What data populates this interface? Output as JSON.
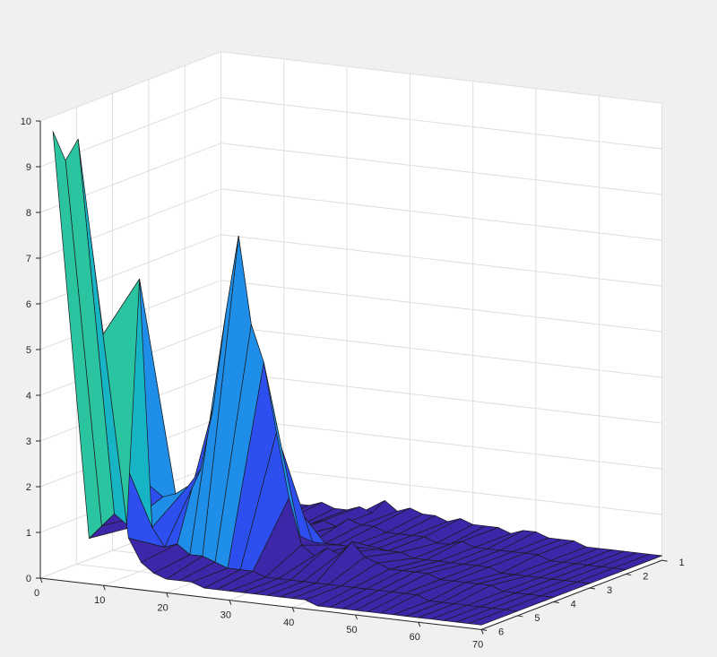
{
  "chart_data": {
    "type": "surface",
    "title": "",
    "xlabel": "",
    "ylabel": "",
    "zlabel": "",
    "xlim": [
      0,
      70
    ],
    "ylim": [
      1,
      6
    ],
    "zlim": [
      0,
      10
    ],
    "x_ticks": [
      "0",
      "10",
      "20",
      "30",
      "40",
      "50",
      "60",
      "70"
    ],
    "y_ticks": [
      "1",
      "2",
      "3",
      "4",
      "5",
      "6"
    ],
    "z_ticks": [
      "0",
      "1",
      "2",
      "3",
      "4",
      "5",
      "6",
      "7",
      "8",
      "9",
      "10"
    ],
    "grid": true,
    "colormap": [
      "#3e26a8",
      "#2e4ff0",
      "#1f8ee9",
      "#16b4c4",
      "#2bc4a0",
      "#8ab87b",
      "#e9b83a",
      "#fbd233"
    ],
    "rows": [
      {
        "y": 1,
        "x": [
          2,
          4,
          6,
          8,
          10,
          12,
          14,
          16,
          18,
          20,
          22,
          24,
          26,
          28,
          30,
          32,
          34,
          36,
          38,
          40,
          42,
          44,
          46,
          48,
          50,
          52,
          54,
          56,
          58,
          60,
          62,
          64,
          66,
          68,
          70
        ],
        "z": [
          0.3,
          0.2,
          0.3,
          0.2,
          0.4,
          0.3,
          0.3,
          0.4,
          0.3,
          0.3,
          0.4,
          0.3,
          0.6,
          0.4,
          0.5,
          0.4,
          0.4,
          0.3,
          0.4,
          0.3,
          0.3,
          0.3,
          0.2,
          0.3,
          0.3,
          0.2,
          0.2,
          0.2,
          0.1,
          0.1,
          0.1,
          0.1,
          0.1,
          0.1,
          0.1
        ]
      },
      {
        "y": 2,
        "x": [
          2,
          4,
          6,
          8,
          10,
          12,
          14,
          16,
          18,
          20,
          22,
          24,
          26,
          28,
          30,
          32,
          34,
          36,
          38,
          40,
          42,
          44,
          46,
          48,
          50,
          52,
          54,
          56,
          58,
          60,
          62,
          64,
          66,
          68,
          70
        ],
        "z": [
          0.3,
          0.2,
          0.3,
          0.2,
          0.3,
          0.3,
          0.3,
          0.3,
          0.2,
          0.3,
          0.4,
          0.3,
          0.5,
          0.4,
          0.4,
          0.3,
          0.3,
          0.3,
          0.3,
          0.2,
          0.2,
          0.3,
          0.2,
          0.2,
          0.2,
          0.2,
          0.2,
          0.2,
          0.1,
          0.1,
          0.1,
          0.1,
          0.1,
          0.1,
          0.1
        ]
      },
      {
        "y": 3,
        "x": [
          2,
          4,
          6,
          8,
          10,
          12,
          14,
          16,
          18,
          20,
          22,
          24,
          26,
          28,
          30,
          32,
          34,
          36,
          38,
          40,
          42,
          44,
          46,
          48,
          50,
          52,
          54,
          56,
          58,
          60,
          62,
          64,
          66,
          68,
          70
        ],
        "z": [
          0.4,
          0.3,
          0.3,
          0.3,
          0.3,
          0.4,
          0.5,
          0.3,
          0.3,
          0.3,
          0.4,
          0.4,
          0.3,
          0.3,
          0.3,
          0.3,
          0.3,
          0.3,
          0.3,
          0.3,
          0.2,
          0.2,
          0.2,
          0.2,
          0.2,
          0.2,
          0.2,
          0.1,
          0.1,
          0.1,
          0.1,
          0.1,
          0.1,
          0.1,
          0.1
        ]
      },
      {
        "y": 4,
        "x": [
          2,
          4,
          6,
          8,
          10,
          12,
          14,
          16,
          18,
          20,
          22,
          24,
          26,
          28,
          30,
          32,
          34,
          36,
          38,
          40,
          42,
          44,
          46,
          48,
          50,
          52,
          54,
          56,
          58,
          60,
          62,
          64,
          66,
          68,
          70
        ],
        "z": [
          0.5,
          0.8,
          1.5,
          1.3,
          1.4,
          1.6,
          2.0,
          3.4,
          5.5,
          7.2,
          5.3,
          4.5,
          3.0,
          1.6,
          0.6,
          0.4,
          0.6,
          0.5,
          0.8,
          0.5,
          0.4,
          0.3,
          0.3,
          0.3,
          0.3,
          0.2,
          0.2,
          0.2,
          0.2,
          0.2,
          0.1,
          0.1,
          0.1,
          0.1,
          0.1
        ]
      },
      {
        "y": 5,
        "x": [
          2,
          4,
          6,
          8,
          10,
          12,
          14,
          16,
          18,
          20,
          22,
          24,
          26,
          28,
          30,
          32,
          34,
          36,
          38,
          40,
          42,
          44,
          46,
          48,
          50,
          52,
          54,
          56,
          58,
          60,
          62,
          64,
          66,
          68,
          70
        ],
        "z": [
          0.6,
          0.9,
          1.2,
          1.0,
          6.4,
          1.0,
          0.6,
          0.7,
          0.5,
          0.5,
          0.4,
          0.3,
          0.3,
          0.3,
          0.2,
          0.2,
          0.2,
          0.2,
          0.2,
          0.2,
          0.2,
          0.2,
          0.2,
          0.2,
          0.2,
          0.2,
          0.2,
          0.1,
          0.1,
          0.1,
          0.1,
          0.1,
          0.1,
          0.1,
          0.1
        ]
      },
      {
        "y": 6,
        "x": [
          2,
          4,
          6,
          8,
          10,
          12,
          14,
          16,
          18,
          20,
          22,
          24,
          26,
          28,
          30,
          32,
          34,
          36,
          38,
          40,
          42,
          44,
          46,
          48,
          50,
          52,
          54,
          56,
          58,
          60,
          62,
          64,
          66,
          68,
          70
        ],
        "z": [
          9.8,
          9.2,
          9.7,
          7.6,
          5.5,
          3.2,
          1.1,
          0.6,
          0.4,
          0.3,
          0.3,
          0.3,
          0.2,
          0.2,
          0.2,
          0.2,
          0.2,
          0.2,
          0.2,
          0.2,
          0.2,
          0.1,
          0.1,
          0.1,
          0.1,
          0.1,
          0.1,
          0.1,
          0.1,
          0.1,
          0.1,
          0.1,
          0.1,
          0.1,
          0.1
        ]
      }
    ]
  }
}
